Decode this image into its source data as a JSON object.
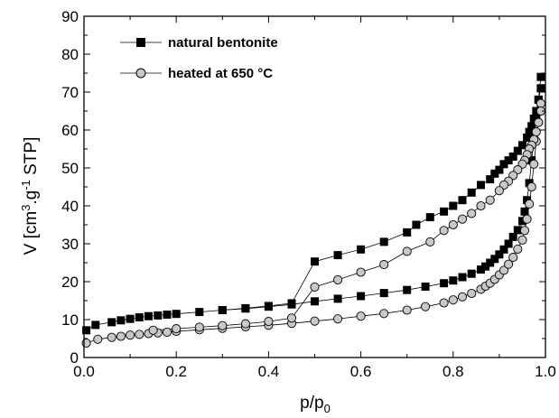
{
  "chart_data": {
    "type": "scatter",
    "xlabel": {
      "base": "p/p",
      "sub": "0"
    },
    "ylabel": {
      "pre": "V [cm",
      "sup1": "3",
      "mid": ".g",
      "sup2": "-1",
      "post": " STP]"
    },
    "xlim": [
      0.0,
      1.0
    ],
    "ylim": [
      0,
      90
    ],
    "x_ticks": [
      "0.0",
      "0.2",
      "0.4",
      "0.6",
      "0.8",
      "1.0"
    ],
    "y_ticks": [
      "0",
      "10",
      "20",
      "30",
      "40",
      "50",
      "60",
      "70",
      "80",
      "90"
    ],
    "grid": false,
    "legend_position": "top-left",
    "series": [
      {
        "name": "natural bentonite",
        "marker": "square",
        "color": "#000000",
        "fill": "#000000",
        "adsorption": {
          "x": [
            0.005,
            0.025,
            0.06,
            0.08,
            0.1,
            0.12,
            0.14,
            0.16,
            0.18,
            0.2,
            0.25,
            0.3,
            0.35,
            0.4,
            0.45,
            0.5,
            0.55,
            0.6,
            0.65,
            0.7,
            0.74,
            0.78,
            0.8,
            0.82,
            0.84,
            0.86,
            0.87,
            0.88,
            0.89,
            0.9,
            0.91,
            0.92,
            0.93,
            0.94,
            0.95,
            0.955,
            0.96,
            0.965,
            0.97,
            0.975,
            0.98,
            0.985,
            0.99
          ],
          "y": [
            7.2,
            8.6,
            9.3,
            9.8,
            10.2,
            10.6,
            10.9,
            11.1,
            11.3,
            11.5,
            12.0,
            12.5,
            12.9,
            13.4,
            14.0,
            14.8,
            15.5,
            16.2,
            17.0,
            17.8,
            18.7,
            19.6,
            20.3,
            21.2,
            22.1,
            23.2,
            24.0,
            25.0,
            26.0,
            27.2,
            28.5,
            30.0,
            31.8,
            33.6,
            36.0,
            38.5,
            41.5,
            46.0,
            52.0,
            58.0,
            63.0,
            68.0,
            74.0
          ]
        },
        "desorption": {
          "x": [
            0.99,
            0.985,
            0.98,
            0.975,
            0.97,
            0.965,
            0.96,
            0.95,
            0.94,
            0.93,
            0.92,
            0.91,
            0.9,
            0.89,
            0.88,
            0.86,
            0.84,
            0.82,
            0.8,
            0.78,
            0.75,
            0.72,
            0.7,
            0.65,
            0.6,
            0.55,
            0.5,
            0.45,
            0.4,
            0.35,
            0.3
          ],
          "y": [
            71.0,
            68.0,
            65.0,
            63.0,
            61.0,
            59.5,
            58.0,
            56.0,
            54.5,
            53.0,
            52.0,
            51.0,
            49.5,
            48.5,
            47.0,
            45.5,
            43.5,
            41.5,
            40.0,
            38.5,
            37.0,
            35.0,
            33.0,
            30.5,
            28.5,
            27.0,
            25.3,
            14.3,
            13.6,
            13.0,
            12.5
          ]
        }
      },
      {
        "name": "heated at 650 °C",
        "marker": "circle",
        "color": "#000000",
        "fill": "#c8c8c8",
        "adsorption": {
          "x": [
            0.005,
            0.03,
            0.06,
            0.08,
            0.1,
            0.12,
            0.14,
            0.16,
            0.18,
            0.2,
            0.25,
            0.3,
            0.35,
            0.4,
            0.45,
            0.5,
            0.55,
            0.6,
            0.65,
            0.7,
            0.74,
            0.78,
            0.8,
            0.82,
            0.84,
            0.86,
            0.87,
            0.88,
            0.89,
            0.9,
            0.91,
            0.92,
            0.93,
            0.94,
            0.95,
            0.955,
            0.96,
            0.965,
            0.97,
            0.975,
            0.98,
            0.985,
            0.99
          ],
          "y": [
            3.8,
            4.8,
            5.3,
            5.6,
            5.9,
            6.1,
            6.3,
            6.5,
            6.7,
            6.9,
            7.3,
            7.7,
            8.1,
            8.5,
            9.0,
            9.6,
            10.2,
            10.9,
            11.6,
            12.5,
            13.4,
            14.4,
            15.2,
            16.0,
            16.9,
            18.0,
            18.8,
            19.6,
            20.6,
            21.8,
            23.0,
            24.6,
            26.4,
            28.6,
            31.0,
            33.5,
            36.5,
            40.5,
            45.0,
            51.0,
            57.0,
            62.0,
            67.0
          ]
        },
        "desorption": {
          "x": [
            0.99,
            0.985,
            0.98,
            0.975,
            0.97,
            0.965,
            0.96,
            0.955,
            0.95,
            0.94,
            0.93,
            0.92,
            0.91,
            0.9,
            0.88,
            0.86,
            0.84,
            0.82,
            0.8,
            0.78,
            0.75,
            0.7,
            0.65,
            0.6,
            0.55,
            0.5,
            0.45,
            0.4,
            0.35,
            0.3,
            0.25,
            0.2,
            0.15
          ],
          "y": [
            65.0,
            62.0,
            59.5,
            57.5,
            56.0,
            55.0,
            53.5,
            52.0,
            51.0,
            49.5,
            48.0,
            46.5,
            45.5,
            44.0,
            41.5,
            40.0,
            38.0,
            36.5,
            35.0,
            33.5,
            30.5,
            28.0,
            24.5,
            22.5,
            20.5,
            18.6,
            10.4,
            9.5,
            8.9,
            8.4,
            8.0,
            7.6,
            7.2
          ]
        }
      }
    ]
  }
}
